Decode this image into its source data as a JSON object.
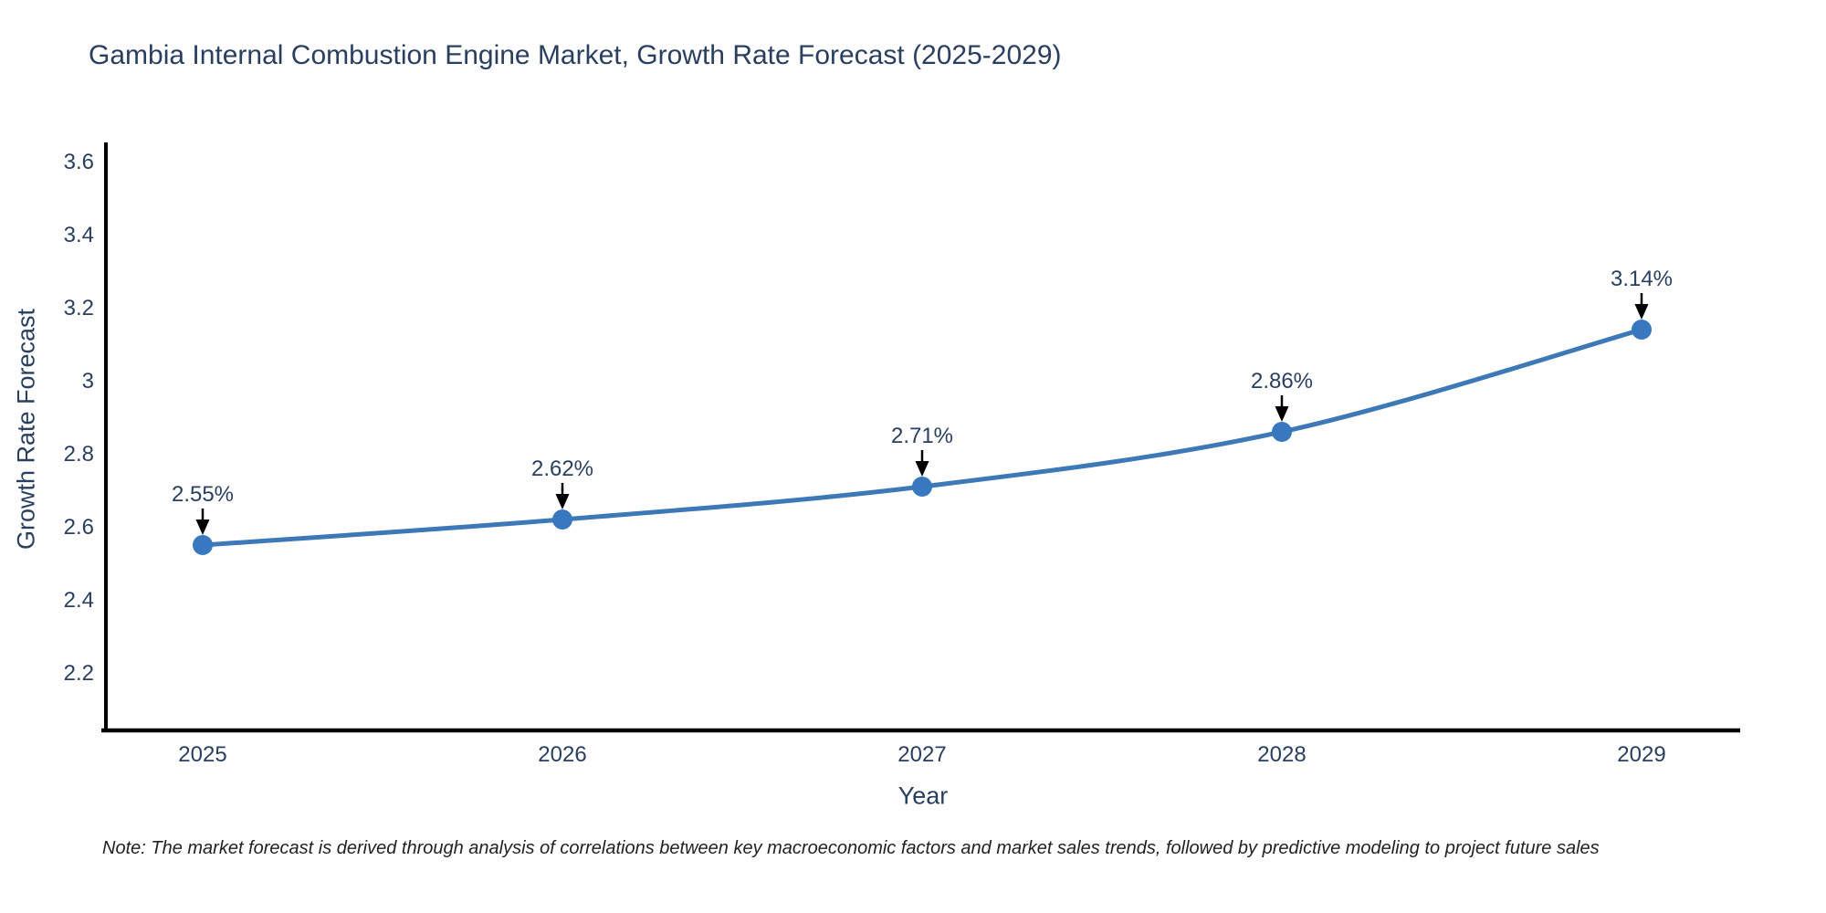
{
  "title": {
    "text": "Gambia Internal Combustion Engine Market, Growth Rate Forecast (2025-2029)"
  },
  "note": {
    "text": "Note: The market forecast is derived through analysis of correlations between key macroeconomic factors and market sales trends, followed by predictive modeling to project future sales"
  },
  "chart_data": {
    "type": "line",
    "title": "Gambia Internal Combustion Engine Market, Growth Rate Forecast (2025-2029)",
    "xlabel": "Year",
    "ylabel": "Growth Rate Forecast",
    "categories": [
      "2025",
      "2026",
      "2027",
      "2028",
      "2029"
    ],
    "x": [
      2025,
      2026,
      2027,
      2028,
      2029
    ],
    "series": [
      {
        "name": "Growth Rate Forecast",
        "values": [
          2.55,
          2.62,
          2.71,
          2.86,
          3.14
        ]
      }
    ],
    "point_labels": [
      "2.55%",
      "2.62%",
      "2.71%",
      "2.86%",
      "3.14%"
    ],
    "yticks": {
      "values": [
        2.2,
        2.4,
        2.6,
        2.8,
        3,
        3.2,
        3.4,
        3.6
      ],
      "labels": [
        "2.2",
        "2.4",
        "2.6",
        "2.8",
        "3",
        "3.2",
        "3.4",
        "3.6"
      ]
    },
    "ylim": [
      2.04,
      3.65
    ],
    "grid": false,
    "legend": "none",
    "annotations_have_arrows": true,
    "colors": {
      "line": "#3d78b7",
      "marker": "#3778be",
      "axis": "#000000",
      "text": "#2a3f5f",
      "annotation_text": "#2a3f5f",
      "annotation_arrow": "#000000",
      "note_text": "#222222"
    }
  }
}
